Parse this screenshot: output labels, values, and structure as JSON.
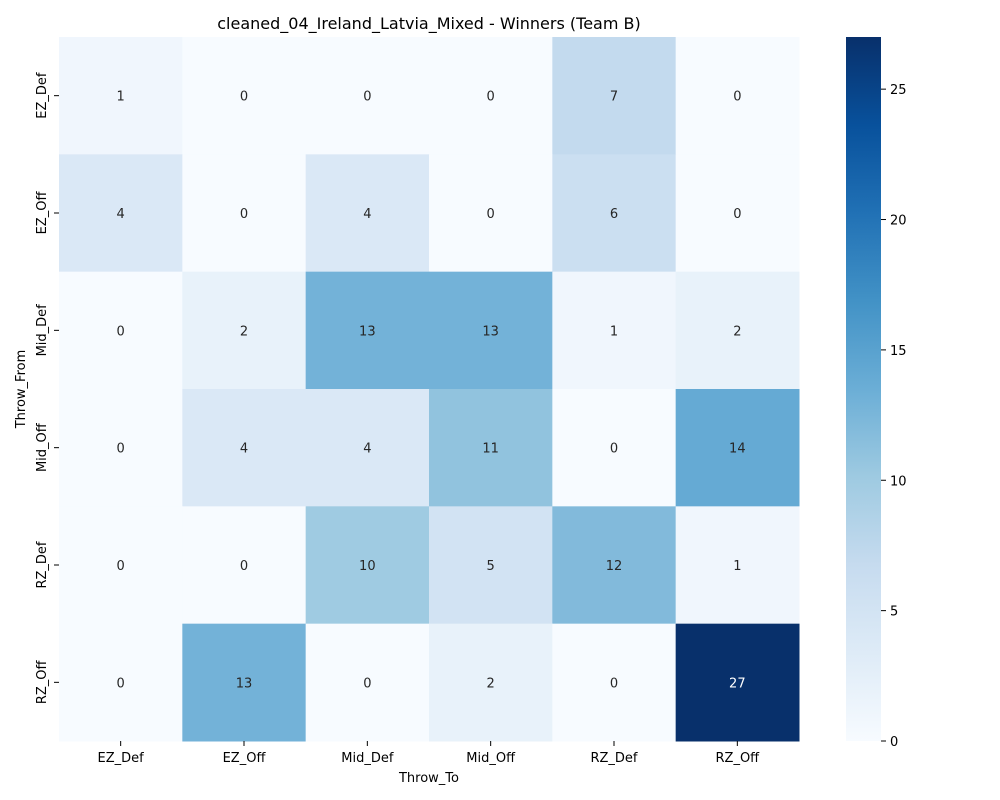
{
  "chart_data": {
    "type": "heatmap",
    "title": "cleaned_04_Ireland_Latvia_Mixed - Winners (Team B)",
    "xlabel": "Throw_To",
    "ylabel": "Throw_From",
    "x_categories": [
      "EZ_Def",
      "EZ_Off",
      "Mid_Def",
      "Mid_Off",
      "RZ_Def",
      "RZ_Off"
    ],
    "y_categories": [
      "EZ_Def",
      "EZ_Off",
      "Mid_Def",
      "Mid_Off",
      "RZ_Def",
      "RZ_Off"
    ],
    "values": [
      [
        1,
        0,
        0,
        0,
        7,
        0
      ],
      [
        4,
        0,
        4,
        0,
        6,
        0
      ],
      [
        0,
        2,
        13,
        13,
        1,
        2
      ],
      [
        0,
        4,
        4,
        11,
        0,
        14
      ],
      [
        0,
        0,
        10,
        5,
        12,
        1
      ],
      [
        0,
        13,
        0,
        2,
        0,
        27
      ]
    ],
    "colormap": "Blues",
    "vmin": 0,
    "vmax": 27,
    "colorbar_ticks": [
      0,
      5,
      10,
      15,
      20,
      25
    ]
  }
}
